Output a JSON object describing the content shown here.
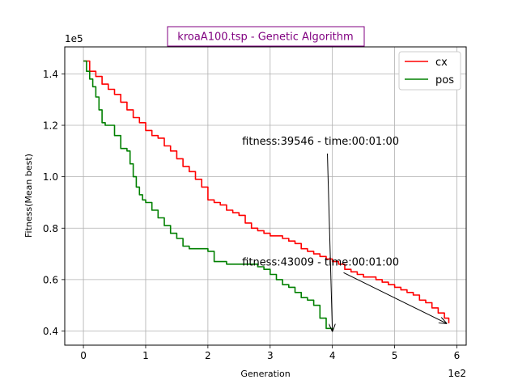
{
  "chart_data": {
    "type": "line",
    "title": "kroaA100.tsp - Genetic Algorithm",
    "xlabel": "Generation",
    "ylabel": "Fitness(Mean best)",
    "x_multiplier_label": "1e2",
    "y_multiplier_label": "1e5",
    "xlim": [
      -30,
      615
    ],
    "ylim": [
      0.345,
      1.505
    ],
    "x_ticks": [
      0,
      100,
      200,
      300,
      400,
      500,
      600
    ],
    "x_tick_labels": [
      "0",
      "1",
      "2",
      "3",
      "4",
      "5",
      "6"
    ],
    "y_ticks": [
      0.4,
      0.6,
      0.8,
      1.0,
      1.2,
      1.4
    ],
    "y_tick_labels": [
      "0.4",
      "0.6",
      "0.8",
      "1.0",
      "1.2",
      "1.4"
    ],
    "grid": true,
    "legend_position": "top-right",
    "title_color": "#800080",
    "series": [
      {
        "name": "cx",
        "color": "#ff0000",
        "x": [
          0,
          10,
          20,
          30,
          40,
          50,
          60,
          70,
          80,
          90,
          100,
          110,
          120,
          130,
          140,
          150,
          160,
          170,
          180,
          190,
          200,
          210,
          220,
          230,
          240,
          250,
          260,
          270,
          280,
          290,
          300,
          310,
          320,
          330,
          340,
          350,
          360,
          370,
          380,
          390,
          400,
          410,
          420,
          430,
          440,
          450,
          460,
          470,
          480,
          490,
          500,
          510,
          520,
          530,
          540,
          550,
          560,
          570,
          580,
          587
        ],
        "y": [
          1.45,
          1.41,
          1.39,
          1.36,
          1.34,
          1.32,
          1.29,
          1.26,
          1.23,
          1.21,
          1.18,
          1.16,
          1.15,
          1.12,
          1.1,
          1.07,
          1.04,
          1.02,
          0.99,
          0.96,
          0.91,
          0.9,
          0.89,
          0.87,
          0.86,
          0.85,
          0.82,
          0.8,
          0.79,
          0.78,
          0.77,
          0.77,
          0.76,
          0.75,
          0.74,
          0.72,
          0.71,
          0.7,
          0.69,
          0.68,
          0.67,
          0.66,
          0.64,
          0.63,
          0.62,
          0.61,
          0.61,
          0.6,
          0.59,
          0.58,
          0.57,
          0.56,
          0.55,
          0.54,
          0.52,
          0.51,
          0.49,
          0.47,
          0.45,
          0.43
        ]
      },
      {
        "name": "pos",
        "color": "#008000",
        "x": [
          0,
          5,
          10,
          15,
          20,
          25,
          30,
          35,
          40,
          50,
          60,
          70,
          75,
          80,
          85,
          90,
          95,
          100,
          110,
          120,
          130,
          140,
          150,
          160,
          170,
          180,
          190,
          200,
          210,
          220,
          230,
          240,
          250,
          260,
          270,
          280,
          290,
          300,
          310,
          320,
          330,
          340,
          350,
          360,
          370,
          380,
          390,
          400
        ],
        "y": [
          1.45,
          1.41,
          1.38,
          1.35,
          1.31,
          1.26,
          1.21,
          1.2,
          1.2,
          1.16,
          1.11,
          1.1,
          1.05,
          1.0,
          0.96,
          0.93,
          0.91,
          0.9,
          0.87,
          0.84,
          0.81,
          0.78,
          0.76,
          0.73,
          0.72,
          0.72,
          0.72,
          0.71,
          0.67,
          0.67,
          0.66,
          0.66,
          0.66,
          0.66,
          0.66,
          0.65,
          0.64,
          0.62,
          0.6,
          0.58,
          0.57,
          0.55,
          0.53,
          0.52,
          0.5,
          0.45,
          0.41,
          0.4
        ]
      }
    ],
    "annotations": [
      {
        "text": "fitness:39546 - time:00:01:00",
        "text_x": 255,
        "text_y": 1.125,
        "arrow_from_x": 392,
        "arrow_from_y": 1.09,
        "arrow_to_x": 400,
        "arrow_to_y": 0.4
      },
      {
        "text": "fitness:43009 - time:00:01:00",
        "text_x": 255,
        "text_y": 0.655,
        "arrow_from_x": 418,
        "arrow_from_y": 0.627,
        "arrow_to_x": 583,
        "arrow_to_y": 0.43
      }
    ]
  }
}
